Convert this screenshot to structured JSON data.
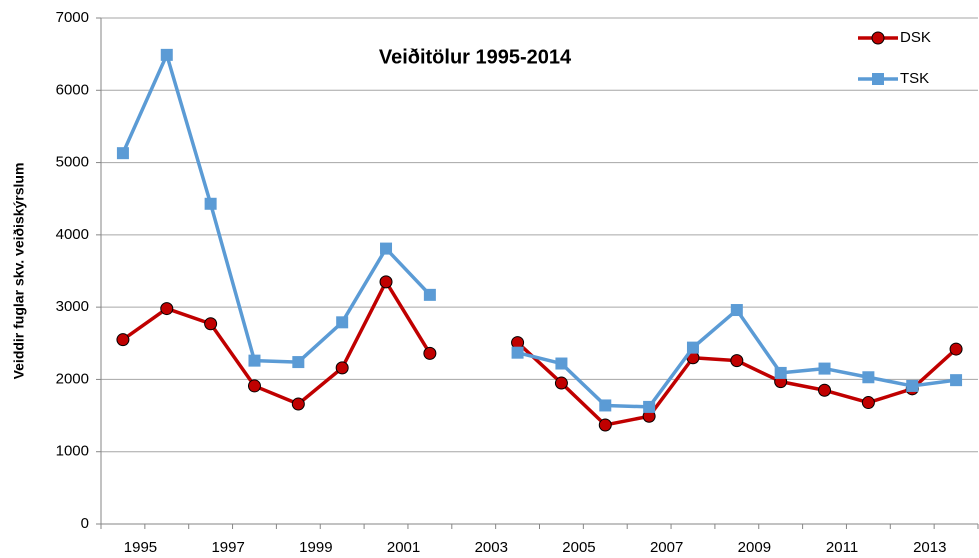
{
  "chart_data": {
    "type": "line",
    "title": "Veiðitölur 1995-2014",
    "y_label": "Veiddir fuglar skv. veiðiskýrslum",
    "categories": [
      "1995",
      null,
      "1997",
      null,
      "1999",
      null,
      "2001",
      null,
      "2003",
      null,
      "2005",
      null,
      "2007",
      null,
      "2009",
      null,
      "2011",
      null,
      "2013",
      null
    ],
    "series": [
      {
        "name": "DSK",
        "color": "#c00000",
        "marker": "circle",
        "values": [
          2550,
          2980,
          2770,
          1910,
          1660,
          2160,
          3350,
          2360,
          null,
          2510,
          1950,
          1370,
          1490,
          2300,
          2260,
          1970,
          1850,
          1680,
          1870,
          2420
        ]
      },
      {
        "name": "TSK",
        "color": "#5b9bd5",
        "marker": "square",
        "values": [
          5130,
          6490,
          4430,
          2260,
          2240,
          2790,
          3810,
          3170,
          null,
          2370,
          2220,
          1640,
          1620,
          2440,
          2960,
          2090,
          2150,
          2030,
          1910,
          1990
        ]
      }
    ],
    "ylim": [
      0,
      7000
    ],
    "yticks": [
      0,
      1000,
      2000,
      3000,
      4000,
      5000,
      6000,
      7000
    ],
    "grid": true,
    "legend": "top-right"
  }
}
